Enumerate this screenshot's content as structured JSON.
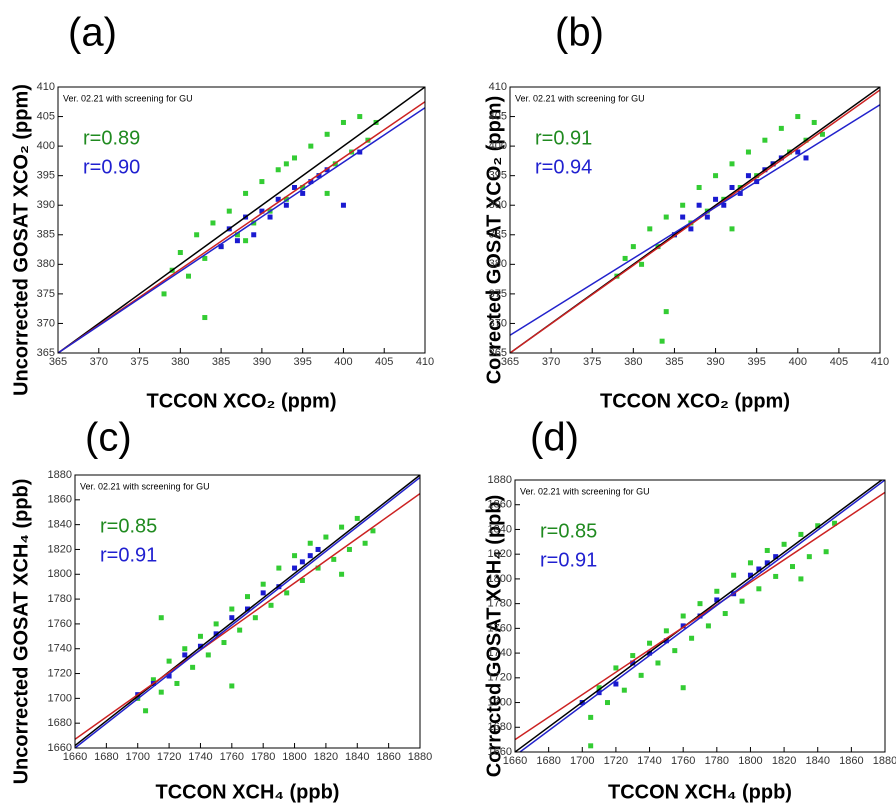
{
  "chart_data": [
    {
      "type": "scatter",
      "panel": "(a)",
      "note": "Ver. 02.21 with screening for GU",
      "xlabel": "TCCON XCO₂ (ppm)",
      "ylabel": "Uncorrected GOSAT  XCO₂ (ppm)",
      "xlim": [
        365,
        410
      ],
      "ylim": [
        365,
        410
      ],
      "xticks": [
        365,
        370,
        375,
        380,
        385,
        390,
        395,
        400,
        405,
        410
      ],
      "yticks": [
        365,
        370,
        375,
        380,
        385,
        390,
        395,
        400,
        405,
        410
      ],
      "annotations": [
        {
          "text": "r=0.89",
          "color": "#1f8a1f"
        },
        {
          "text": "r=0.90",
          "color": "#2020d0"
        }
      ],
      "series": [
        {
          "color": "#33cc33",
          "x": [
            378,
            379,
            380,
            381,
            382,
            383,
            384,
            385,
            386,
            387,
            388,
            389,
            390,
            391,
            392,
            393,
            394,
            395,
            396,
            397,
            398,
            399,
            400,
            401,
            402,
            403,
            404,
            383,
            388,
            393,
            398
          ],
          "values": [
            375,
            379,
            382,
            378,
            385,
            381,
            387,
            383,
            389,
            385,
            392,
            387,
            394,
            389,
            396,
            391,
            398,
            393,
            400,
            395,
            402,
            397,
            404,
            399,
            405,
            401,
            404,
            371,
            384,
            397,
            392
          ]
        },
        {
          "color": "#1a1ad0",
          "x": [
            385,
            386,
            387,
            388,
            389,
            390,
            391,
            392,
            393,
            394,
            395,
            396,
            397,
            398,
            400,
            402
          ],
          "values": [
            383,
            386,
            384,
            388,
            385,
            389,
            388,
            391,
            390,
            393,
            392,
            394,
            395,
            396,
            390,
            399
          ]
        }
      ],
      "lines": [
        {
          "color": "#000000",
          "x": [
            365,
            410
          ],
          "values": [
            365,
            410
          ]
        },
        {
          "color": "#cc2222",
          "x": [
            365,
            410
          ],
          "values": [
            365,
            407.5
          ]
        },
        {
          "color": "#2222cc",
          "x": [
            365,
            410
          ],
          "values": [
            365,
            406.5
          ]
        }
      ]
    },
    {
      "type": "scatter",
      "panel": "(b)",
      "note": "Ver. 02.21 with screening for GU",
      "xlabel": "TCCON XCO₂ (ppm)",
      "ylabel": "Corrected GOSAT XCO₂ (ppm)",
      "xlim": [
        365,
        410
      ],
      "ylim": [
        365,
        410
      ],
      "xticks": [
        365,
        370,
        375,
        380,
        385,
        390,
        395,
        400,
        405,
        410
      ],
      "yticks": [
        365,
        370,
        375,
        380,
        385,
        390,
        395,
        400,
        405,
        410
      ],
      "annotations": [
        {
          "text": "r=0.91",
          "color": "#1f8a1f"
        },
        {
          "text": "r=0.94",
          "color": "#2020d0"
        }
      ],
      "series": [
        {
          "color": "#33cc33",
          "x": [
            378,
            379,
            380,
            381,
            382,
            383,
            384,
            385,
            386,
            387,
            388,
            389,
            390,
            391,
            392,
            393,
            394,
            395,
            396,
            397,
            398,
            399,
            400,
            401,
            402,
            403,
            383.5,
            384,
            392
          ],
          "values": [
            378,
            381,
            383,
            380,
            386,
            383,
            388,
            385,
            390,
            387,
            393,
            389,
            395,
            391,
            397,
            393,
            399,
            395,
            401,
            397,
            403,
            399,
            405,
            401,
            404,
            402,
            367,
            372,
            386
          ]
        },
        {
          "color": "#1a1ad0",
          "x": [
            385,
            386,
            387,
            388,
            389,
            390,
            391,
            392,
            393,
            394,
            395,
            396,
            397,
            398,
            400,
            401
          ],
          "values": [
            385,
            388,
            386,
            390,
            388,
            391,
            390,
            393,
            392,
            395,
            394,
            396,
            397,
            398,
            399,
            398
          ]
        }
      ],
      "lines": [
        {
          "color": "#000000",
          "x": [
            365,
            410
          ],
          "values": [
            365,
            410
          ]
        },
        {
          "color": "#cc2222",
          "x": [
            365,
            410
          ],
          "values": [
            365,
            409.5
          ]
        },
        {
          "color": "#2222cc",
          "x": [
            365,
            410
          ],
          "values": [
            368,
            407
          ]
        }
      ]
    },
    {
      "type": "scatter",
      "panel": "(c)",
      "note": "Ver. 02.21 with screening for GU",
      "xlabel": "TCCON XCH₄ (ppb)",
      "ylabel": "Uncorrected GOSAT XCH₄ (ppb)",
      "xlim": [
        1660,
        1880
      ],
      "ylim": [
        1660,
        1880
      ],
      "xticks": [
        1660,
        1680,
        1700,
        1720,
        1740,
        1760,
        1780,
        1800,
        1820,
        1840,
        1860,
        1880
      ],
      "yticks": [
        1660,
        1680,
        1700,
        1720,
        1740,
        1760,
        1780,
        1800,
        1820,
        1840,
        1860,
        1880
      ],
      "annotations": [
        {
          "text": "r=0.85",
          "color": "#1f8a1f"
        },
        {
          "text": "r=0.91",
          "color": "#2020d0"
        }
      ],
      "series": [
        {
          "color": "#33cc33",
          "x": [
            1700,
            1705,
            1710,
            1715,
            1720,
            1725,
            1730,
            1735,
            1740,
            1745,
            1750,
            1755,
            1760,
            1765,
            1770,
            1775,
            1780,
            1785,
            1790,
            1795,
            1800,
            1805,
            1810,
            1815,
            1820,
            1825,
            1830,
            1835,
            1840,
            1845,
            1850,
            1715,
            1760,
            1830
          ],
          "values": [
            1700,
            1690,
            1715,
            1705,
            1730,
            1712,
            1740,
            1725,
            1750,
            1735,
            1760,
            1745,
            1772,
            1755,
            1782,
            1765,
            1792,
            1775,
            1805,
            1785,
            1815,
            1795,
            1825,
            1805,
            1830,
            1812,
            1838,
            1820,
            1845,
            1825,
            1835,
            1765,
            1710,
            1800
          ]
        },
        {
          "color": "#1a1ad0",
          "x": [
            1700,
            1710,
            1720,
            1730,
            1740,
            1750,
            1760,
            1770,
            1780,
            1790,
            1800,
            1805,
            1810,
            1815
          ],
          "values": [
            1703,
            1712,
            1718,
            1735,
            1742,
            1752,
            1765,
            1772,
            1785,
            1790,
            1805,
            1810,
            1815,
            1820
          ]
        }
      ],
      "lines": [
        {
          "color": "#000000",
          "x": [
            1660,
            1880
          ],
          "values": [
            1662,
            1880
          ]
        },
        {
          "color": "#cc2222",
          "x": [
            1660,
            1880
          ],
          "values": [
            1667,
            1865
          ]
        },
        {
          "color": "#2222cc",
          "x": [
            1660,
            1880
          ],
          "values": [
            1660,
            1878
          ]
        }
      ]
    },
    {
      "type": "scatter",
      "panel": "(d)",
      "note": "Ver. 02.21 with screening for GU",
      "xlabel": "TCCON XCH₄ (ppb)",
      "ylabel": "Corrected GOSAT XCH₄ (ppb)",
      "xlim": [
        1660,
        1880
      ],
      "ylim": [
        1660,
        1880
      ],
      "xticks": [
        1660,
        1680,
        1700,
        1720,
        1740,
        1760,
        1780,
        1800,
        1820,
        1840,
        1860,
        1880
      ],
      "yticks": [
        1660,
        1680,
        1700,
        1720,
        1740,
        1760,
        1780,
        1800,
        1820,
        1840,
        1860,
        1880
      ],
      "annotations": [
        {
          "text": "r=0.85",
          "color": "#1f8a1f"
        },
        {
          "text": "r=0.91",
          "color": "#2020d0"
        }
      ],
      "series": [
        {
          "color": "#33cc33",
          "x": [
            1700,
            1705,
            1710,
            1715,
            1720,
            1725,
            1730,
            1735,
            1740,
            1745,
            1750,
            1755,
            1760,
            1765,
            1770,
            1775,
            1780,
            1785,
            1790,
            1795,
            1800,
            1805,
            1810,
            1815,
            1820,
            1825,
            1830,
            1835,
            1840,
            1845,
            1850,
            1705,
            1760,
            1830
          ],
          "values": [
            1700,
            1688,
            1712,
            1700,
            1728,
            1710,
            1738,
            1722,
            1748,
            1732,
            1758,
            1742,
            1770,
            1752,
            1780,
            1762,
            1790,
            1772,
            1803,
            1782,
            1813,
            1792,
            1823,
            1802,
            1828,
            1810,
            1836,
            1818,
            1843,
            1822,
            1845,
            1665,
            1712,
            1800
          ]
        },
        {
          "color": "#1a1ad0",
          "x": [
            1700,
            1710,
            1720,
            1730,
            1740,
            1750,
            1760,
            1770,
            1780,
            1790,
            1800,
            1805,
            1810,
            1815
          ],
          "values": [
            1700,
            1708,
            1715,
            1732,
            1740,
            1750,
            1762,
            1770,
            1783,
            1788,
            1803,
            1808,
            1813,
            1818
          ]
        }
      ],
      "lines": [
        {
          "color": "#000000",
          "x": [
            1660,
            1880
          ],
          "values": [
            1660,
            1882
          ]
        },
        {
          "color": "#cc2222",
          "x": [
            1660,
            1880
          ],
          "values": [
            1670,
            1870
          ]
        },
        {
          "color": "#2222cc",
          "x": [
            1660,
            1880
          ],
          "values": [
            1657,
            1880
          ]
        }
      ]
    }
  ]
}
